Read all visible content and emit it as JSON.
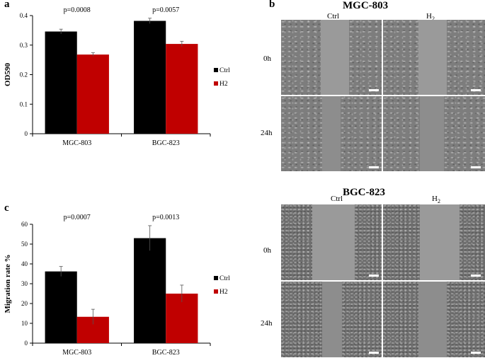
{
  "panels": {
    "a": "a",
    "b": "b",
    "c": "c"
  },
  "micro": {
    "top_title": "MGC-803",
    "bottom_title": "BGC-823",
    "col_ctrl": "Ctrl",
    "col_h2_base": "H",
    "col_h2_sub": "2",
    "row_0h": "0h",
    "row_24h": "24h"
  },
  "colors": {
    "ctrl": "#000000",
    "h2": "#c00000"
  },
  "chart_data": [
    {
      "type": "bar",
      "title": "",
      "xlabel": "",
      "ylabel": "OD590",
      "ylim": [
        0,
        0.4
      ],
      "yticks": [
        "0",
        "0.1",
        "0.2",
        "0.3",
        "0.4"
      ],
      "categories": [
        "MGC-803",
        "BGC-823"
      ],
      "series": [
        {
          "name": "Ctrl",
          "values": [
            0.346,
            0.382
          ],
          "errors": [
            0.008,
            0.009
          ]
        },
        {
          "name": "H2",
          "values": [
            0.268,
            0.304
          ],
          "errors": [
            0.006,
            0.009
          ]
        }
      ],
      "annotations": [
        "p=0.0008",
        "p=0.0057"
      ],
      "legend": "right",
      "grid": false
    },
    {
      "type": "bar",
      "title": "",
      "xlabel": "",
      "ylabel": "Migration rate %",
      "ylim": [
        0,
        60
      ],
      "yticks": [
        "0",
        "10",
        "20",
        "30",
        "40",
        "50",
        "60"
      ],
      "categories": [
        "MGC-803",
        "BGC-823"
      ],
      "series": [
        {
          "name": "Ctrl",
          "values": [
            36.2,
            53.0
          ],
          "errors": [
            2.5,
            6.3
          ]
        },
        {
          "name": "H2",
          "values": [
            13.3,
            25.0
          ],
          "errors": [
            3.8,
            4.3
          ]
        }
      ],
      "annotations": [
        "p=0.0007",
        "p=0.0013"
      ],
      "legend": "right",
      "grid": false
    }
  ]
}
